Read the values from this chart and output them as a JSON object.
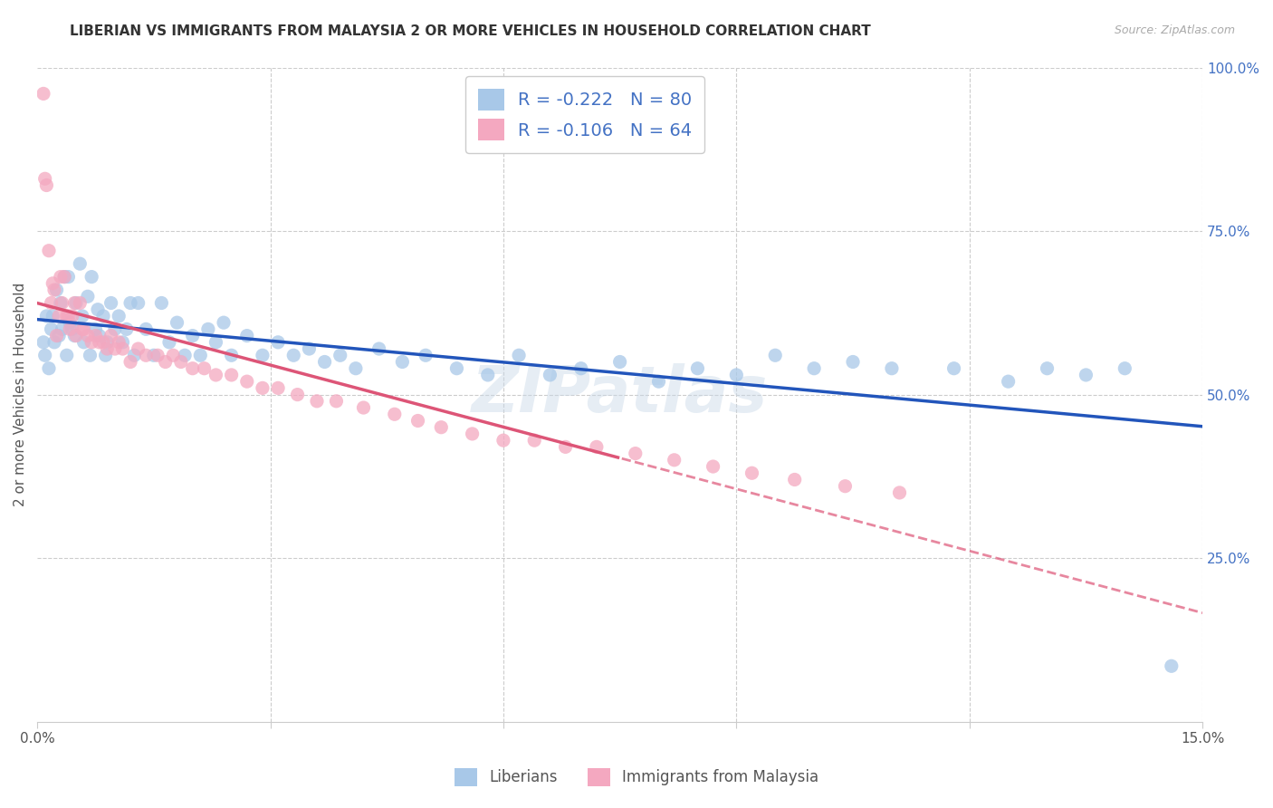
{
  "title": "LIBERIAN VS IMMIGRANTS FROM MALAYSIA 2 OR MORE VEHICLES IN HOUSEHOLD CORRELATION CHART",
  "source": "Source: ZipAtlas.com",
  "ylabel": "2 or more Vehicles in Household",
  "xlim": [
    0.0,
    0.15
  ],
  "ylim": [
    0.0,
    1.0
  ],
  "x_tick_positions": [
    0.0,
    0.03,
    0.06,
    0.09,
    0.12,
    0.15
  ],
  "x_tick_labels": [
    "0.0%",
    "",
    "",
    "",
    "",
    "15.0%"
  ],
  "y_ticks_right": [
    0.25,
    0.5,
    0.75,
    1.0
  ],
  "y_tick_labels_right": [
    "25.0%",
    "50.0%",
    "75.0%",
    "100.0%"
  ],
  "liberian_color": "#a8c8e8",
  "malaysia_color": "#f4a8c0",
  "liberian_R": -0.222,
  "liberian_N": 80,
  "malaysia_R": -0.106,
  "malaysia_N": 64,
  "liberian_line_color": "#2255bb",
  "malaysia_line_color": "#dd5577",
  "legend_label_1": "Liberians",
  "legend_label_2": "Immigrants from Malaysia",
  "watermark": "ZIPatlas",
  "liberian_x": [
    0.0008,
    0.001,
    0.0012,
    0.0015,
    0.0018,
    0.002,
    0.0022,
    0.0025,
    0.0028,
    0.003,
    0.0032,
    0.0035,
    0.0038,
    0.004,
    0.0042,
    0.0045,
    0.0048,
    0.005,
    0.0055,
    0.0058,
    0.006,
    0.0065,
    0.0068,
    0.007,
    0.0075,
    0.0078,
    0.008,
    0.0085,
    0.0088,
    0.009,
    0.0095,
    0.01,
    0.0105,
    0.011,
    0.0115,
    0.012,
    0.0125,
    0.013,
    0.014,
    0.015,
    0.016,
    0.017,
    0.018,
    0.019,
    0.02,
    0.021,
    0.022,
    0.023,
    0.024,
    0.025,
    0.027,
    0.029,
    0.031,
    0.033,
    0.035,
    0.037,
    0.039,
    0.041,
    0.044,
    0.047,
    0.05,
    0.054,
    0.058,
    0.062,
    0.066,
    0.07,
    0.075,
    0.08,
    0.085,
    0.09,
    0.095,
    0.1,
    0.105,
    0.11,
    0.118,
    0.125,
    0.13,
    0.135,
    0.14,
    0.146
  ],
  "liberian_y": [
    0.58,
    0.56,
    0.62,
    0.54,
    0.6,
    0.62,
    0.58,
    0.66,
    0.59,
    0.64,
    0.6,
    0.68,
    0.56,
    0.68,
    0.61,
    0.6,
    0.59,
    0.64,
    0.7,
    0.62,
    0.58,
    0.65,
    0.56,
    0.68,
    0.6,
    0.63,
    0.59,
    0.62,
    0.56,
    0.58,
    0.64,
    0.6,
    0.62,
    0.58,
    0.6,
    0.64,
    0.56,
    0.64,
    0.6,
    0.56,
    0.64,
    0.58,
    0.61,
    0.56,
    0.59,
    0.56,
    0.6,
    0.58,
    0.61,
    0.56,
    0.59,
    0.56,
    0.58,
    0.56,
    0.57,
    0.55,
    0.56,
    0.54,
    0.57,
    0.55,
    0.56,
    0.54,
    0.53,
    0.56,
    0.53,
    0.54,
    0.55,
    0.52,
    0.54,
    0.53,
    0.56,
    0.54,
    0.55,
    0.54,
    0.54,
    0.52,
    0.54,
    0.53,
    0.54,
    0.085
  ],
  "malaysia_x": [
    0.0008,
    0.001,
    0.0012,
    0.0015,
    0.0018,
    0.002,
    0.0022,
    0.0025,
    0.0028,
    0.003,
    0.0032,
    0.0035,
    0.0038,
    0.004,
    0.0042,
    0.0045,
    0.0048,
    0.005,
    0.0055,
    0.0058,
    0.006,
    0.0065,
    0.007,
    0.0075,
    0.008,
    0.0085,
    0.009,
    0.0095,
    0.01,
    0.0105,
    0.011,
    0.012,
    0.013,
    0.014,
    0.0155,
    0.0165,
    0.0175,
    0.0185,
    0.02,
    0.0215,
    0.023,
    0.025,
    0.027,
    0.029,
    0.031,
    0.0335,
    0.036,
    0.0385,
    0.042,
    0.046,
    0.049,
    0.052,
    0.056,
    0.06,
    0.064,
    0.068,
    0.072,
    0.077,
    0.082,
    0.087,
    0.092,
    0.0975,
    0.104,
    0.111
  ],
  "malaysia_y": [
    0.96,
    0.83,
    0.82,
    0.72,
    0.64,
    0.67,
    0.66,
    0.59,
    0.62,
    0.68,
    0.64,
    0.68,
    0.62,
    0.62,
    0.6,
    0.62,
    0.64,
    0.59,
    0.64,
    0.6,
    0.6,
    0.59,
    0.58,
    0.59,
    0.58,
    0.58,
    0.57,
    0.59,
    0.57,
    0.58,
    0.57,
    0.55,
    0.57,
    0.56,
    0.56,
    0.55,
    0.56,
    0.55,
    0.54,
    0.54,
    0.53,
    0.53,
    0.52,
    0.51,
    0.51,
    0.5,
    0.49,
    0.49,
    0.48,
    0.47,
    0.46,
    0.45,
    0.44,
    0.43,
    0.43,
    0.42,
    0.42,
    0.41,
    0.4,
    0.39,
    0.38,
    0.37,
    0.36,
    0.35
  ]
}
